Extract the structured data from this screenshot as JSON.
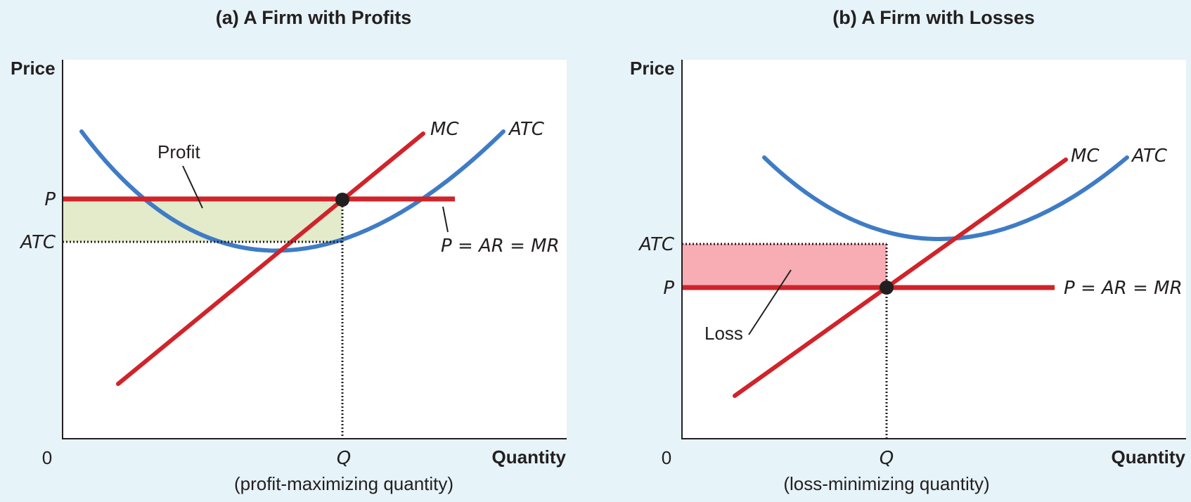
{
  "panel_a": {
    "title": "(a) A Firm with Profits",
    "y_axis_label": "Price",
    "x_axis_label": "Quantity",
    "origin_label": "0",
    "price_label": "P",
    "atc_label": "ATC",
    "q_label": "Q",
    "q_caption": "(profit-maximizing quantity)",
    "mc_label": "MC",
    "atc_curve_label": "ATC",
    "demand_label": "P = AR = MR",
    "area_label": "Profit"
  },
  "panel_b": {
    "title": "(b) A Firm with Losses",
    "y_axis_label": "Price",
    "x_axis_label": "Quantity",
    "origin_label": "0",
    "price_label": "P",
    "atc_label": "ATC",
    "q_label": "Q",
    "q_caption": "(loss-minimizing quantity)",
    "mc_label": "MC",
    "atc_curve_label": "ATC",
    "demand_label": "P = AR = MR",
    "area_label": "Loss"
  },
  "colors": {
    "background": "#e6f3f8",
    "mc_curve": "#d1232a",
    "atc_curve": "#3f7cc5",
    "price_line": "#d1232a",
    "profit_area": "#e3ebcb",
    "loss_area": "#f7adb3"
  }
}
